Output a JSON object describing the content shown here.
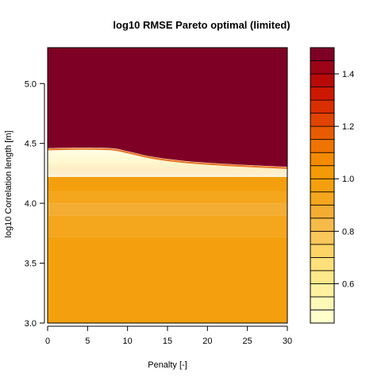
{
  "chart_data": {
    "type": "heatmap",
    "title": "log10 RMSE Pareto optimal (limited)",
    "xlabel": "Penalty [-]",
    "ylabel": "log10 Correlation length [m]",
    "xlim": [
      0,
      30
    ],
    "ylim": [
      3.0,
      5.3
    ],
    "x_ticks": [
      0,
      5,
      10,
      15,
      20,
      25,
      30
    ],
    "x_tick_labels": [
      "0",
      "5",
      "10",
      "15",
      "20",
      "25",
      "30"
    ],
    "y_ticks": [
      3.0,
      3.5,
      4.0,
      4.5,
      5.0
    ],
    "y_tick_labels": [
      "3.0",
      "3.5",
      "4.0",
      "4.5",
      "5.0"
    ],
    "colorbar": {
      "range": [
        0.45,
        1.5
      ],
      "ticks": [
        0.6,
        0.8,
        1.0,
        1.2,
        1.4
      ],
      "tick_labels": [
        "0.6",
        "0.8",
        "1.0",
        "1.2",
        "1.4"
      ],
      "levels": 21,
      "colors": [
        "#FFFFCC",
        "#FFF9B8",
        "#FFF1A0",
        "#FFE98A",
        "#FFE07A",
        "#FDD466",
        "#F9C75A",
        "#F6BA48",
        "#F4AD33",
        "#F4A61C",
        "#F4A00E",
        "#F49A04",
        "#F48A00",
        "#EF7400",
        "#E85C00",
        "#E14400",
        "#D82E00",
        "#CC1800",
        "#B80A08",
        "#9C0418",
        "#7F0025"
      ]
    },
    "boundary": {
      "x": [
        0,
        4,
        8,
        10,
        13,
        17,
        21,
        25,
        30
      ],
      "y": [
        4.46,
        4.465,
        4.46,
        4.435,
        4.39,
        4.355,
        4.335,
        4.32,
        4.305
      ]
    },
    "bands": [
      {
        "y0": 3.0,
        "y1": 3.72,
        "value": 0.97
      },
      {
        "y0": 3.72,
        "y1": 3.9,
        "value": 0.93
      },
      {
        "y0": 3.9,
        "y1": 4.0,
        "value": 0.87
      },
      {
        "y0": 4.0,
        "y1": 4.1,
        "value": 0.93
      },
      {
        "y0": 4.1,
        "y1": 4.22,
        "value": 0.98
      }
    ],
    "upper_value": 1.5
  }
}
